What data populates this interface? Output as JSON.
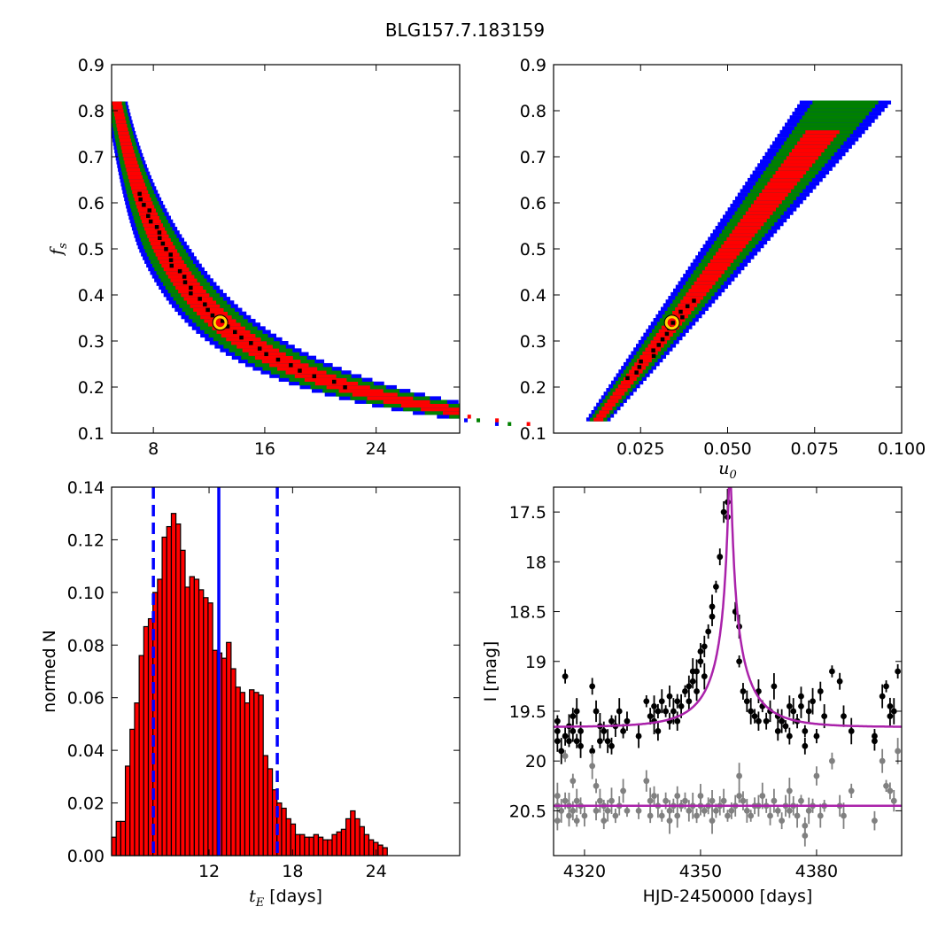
{
  "figure": {
    "title": "BLG157.7.183159"
  },
  "chart_data": [
    {
      "id": "fs-vs-tE",
      "type": "heatmap",
      "xlabel": "",
      "ylabel": "f_s",
      "xlim": [
        5,
        30
      ],
      "ylim": [
        0.1,
        0.9
      ],
      "xticks": [
        8,
        16,
        24
      ],
      "yticks": [
        0.1,
        0.2,
        0.3,
        0.4,
        0.5,
        0.6,
        0.7,
        0.8,
        0.9
      ],
      "region_colors": {
        "3sigma": "#0000ff",
        "2sigma": "#008000",
        "1sigma": "#ff0000",
        "best_samples": "#000000"
      },
      "curve_relation": "f_s ≈ 4.4 / t_E (degeneracy track)",
      "best_fit": {
        "x": 12.8,
        "y": 0.34,
        "marker": "yellow-ring"
      }
    },
    {
      "id": "fs-vs-u0",
      "type": "heatmap",
      "xlabel": "u_0",
      "ylabel": "",
      "xlim": [
        0.0,
        0.1
      ],
      "ylim": [
        0.1,
        0.9
      ],
      "xticks": [
        0.025,
        0.05,
        0.075,
        0.1
      ],
      "xtick_labels": [
        "0.025",
        "0.050",
        "0.075",
        "0.100"
      ],
      "yticks": [
        0.1,
        0.2,
        0.3,
        0.4,
        0.5,
        0.6,
        0.7,
        0.8,
        0.9
      ],
      "region_colors": {
        "3sigma": "#0000ff",
        "2sigma": "#008000",
        "1sigma": "#ff0000",
        "best_samples": "#000000"
      },
      "curve_relation": "f_s ≈ 10 · u_0 (linear)",
      "best_fit": {
        "x": 0.034,
        "y": 0.34,
        "marker": "yellow-ring"
      }
    },
    {
      "id": "tE-histogram",
      "type": "bar",
      "xlabel": "t_E  [days]",
      "ylabel": "normed N",
      "xlim": [
        5,
        30
      ],
      "ylim": [
        0,
        0.14
      ],
      "xticks": [
        12,
        18,
        24
      ],
      "yticks": [
        0.0,
        0.02,
        0.04,
        0.06,
        0.08,
        0.1,
        0.12,
        0.14
      ],
      "ytick_labels": [
        "0.00",
        "0.02",
        "0.04",
        "0.06",
        "0.08",
        "0.10",
        "0.12",
        "0.14"
      ],
      "bin_start": 5.0,
      "bin_width": 0.33,
      "values": [
        0.007,
        0.013,
        0.013,
        0.034,
        0.048,
        0.058,
        0.076,
        0.087,
        0.09,
        0.1,
        0.105,
        0.121,
        0.125,
        0.13,
        0.126,
        0.116,
        0.102,
        0.106,
        0.105,
        0.101,
        0.098,
        0.096,
        0.078,
        0.077,
        0.075,
        0.081,
        0.071,
        0.064,
        0.062,
        0.058,
        0.063,
        0.062,
        0.061,
        0.038,
        0.033,
        0.025,
        0.02,
        0.018,
        0.014,
        0.012,
        0.008,
        0.008,
        0.007,
        0.007,
        0.008,
        0.007,
        0.006,
        0.006,
        0.008,
        0.009,
        0.01,
        0.014,
        0.017,
        0.014,
        0.011,
        0.008,
        0.006,
        0.005,
        0.004,
        0.003
      ],
      "bar_color": "#ff0000",
      "vlines": [
        {
          "x": 8.0,
          "style": "dashed",
          "color": "#0000ff"
        },
        {
          "x": 12.7,
          "style": "solid",
          "color": "#0000ff"
        },
        {
          "x": 16.9,
          "style": "dashed",
          "color": "#0000ff"
        }
      ]
    },
    {
      "id": "light-curve",
      "type": "scatter",
      "xlabel": "HJD-2450000 [days]",
      "ylabel": "I [mag]",
      "xlim": [
        4312,
        4402
      ],
      "ylim": [
        20.95,
        17.25
      ],
      "xticks": [
        4320,
        4350,
        4380
      ],
      "yticks": [
        17.5,
        18.0,
        18.5,
        19.0,
        19.5,
        20.0,
        20.5
      ],
      "series": [
        {
          "color": "#000000",
          "points": [
            [
              4313,
              19.6
            ],
            [
              4313,
              19.7
            ],
            [
              4313,
              19.8
            ],
            [
              4314,
              19.9
            ],
            [
              4315,
              19.15
            ],
            [
              4315,
              19.75
            ],
            [
              4316,
              19.65
            ],
            [
              4316,
              19.8
            ],
            [
              4317,
              19.55
            ],
            [
              4317,
              19.7
            ],
            [
              4318,
              19.5
            ],
            [
              4318,
              19.8
            ],
            [
              4319,
              19.7
            ],
            [
              4319,
              19.85
            ],
            [
              4322,
              19.9
            ],
            [
              4322,
              19.25
            ],
            [
              4323,
              19.5
            ],
            [
              4324,
              19.65
            ],
            [
              4324,
              19.8
            ],
            [
              4325,
              19.7
            ],
            [
              4326,
              19.8
            ],
            [
              4327,
              19.6
            ],
            [
              4327,
              19.85
            ],
            [
              4328,
              19.65
            ],
            [
              4329,
              19.5
            ],
            [
              4330,
              19.7
            ],
            [
              4331,
              19.6
            ],
            [
              4334,
              19.75
            ],
            [
              4336,
              19.4
            ],
            [
              4337,
              19.55
            ],
            [
              4338,
              19.45
            ],
            [
              4338,
              19.6
            ],
            [
              4339,
              19.5
            ],
            [
              4339,
              19.7
            ],
            [
              4340,
              19.4
            ],
            [
              4341,
              19.5
            ],
            [
              4342,
              19.6
            ],
            [
              4342,
              19.35
            ],
            [
              4343,
              19.5
            ],
            [
              4344,
              19.4
            ],
            [
              4344,
              19.6
            ],
            [
              4345,
              19.45
            ],
            [
              4346,
              19.3
            ],
            [
              4347,
              19.4
            ],
            [
              4347,
              19.25
            ],
            [
              4348,
              19.1
            ],
            [
              4348,
              19.2
            ],
            [
              4349,
              19.3
            ],
            [
              4349,
              19.1
            ],
            [
              4350,
              19.0
            ],
            [
              4350,
              18.9
            ],
            [
              4351,
              18.85
            ],
            [
              4351,
              19.15
            ],
            [
              4352,
              18.7
            ],
            [
              4353,
              18.55
            ],
            [
              4353,
              18.45
            ],
            [
              4354,
              18.25
            ],
            [
              4355,
              17.95
            ],
            [
              4356,
              17.5
            ],
            [
              4357,
              17.4
            ],
            [
              4357,
              17.55
            ],
            [
              4359,
              18.5
            ],
            [
              4360,
              18.65
            ],
            [
              4360,
              19.0
            ],
            [
              4361,
              19.3
            ],
            [
              4362,
              19.4
            ],
            [
              4363,
              19.5
            ],
            [
              4364,
              19.55
            ],
            [
              4365,
              19.6
            ],
            [
              4365,
              19.3
            ],
            [
              4366,
              19.45
            ],
            [
              4367,
              19.6
            ],
            [
              4368,
              19.5
            ],
            [
              4369,
              19.25
            ],
            [
              4370,
              19.55
            ],
            [
              4370,
              19.7
            ],
            [
              4371,
              19.6
            ],
            [
              4372,
              19.65
            ],
            [
              4373,
              19.75
            ],
            [
              4373,
              19.45
            ],
            [
              4374,
              19.5
            ],
            [
              4375,
              19.6
            ],
            [
              4376,
              19.35
            ],
            [
              4376,
              19.45
            ],
            [
              4377,
              19.7
            ],
            [
              4377,
              19.85
            ],
            [
              4378,
              19.5
            ],
            [
              4379,
              19.4
            ],
            [
              4380,
              19.75
            ],
            [
              4381,
              19.3
            ],
            [
              4382,
              19.55
            ],
            [
              4384,
              19.1
            ],
            [
              4386,
              19.2
            ],
            [
              4387,
              19.55
            ],
            [
              4389,
              19.7
            ],
            [
              4395,
              19.75
            ],
            [
              4395,
              19.8
            ],
            [
              4397,
              19.35
            ],
            [
              4398,
              19.25
            ],
            [
              4399,
              19.45
            ],
            [
              4399,
              19.55
            ],
            [
              4400,
              19.5
            ],
            [
              4401,
              19.1
            ]
          ]
        },
        {
          "color": "#808080",
          "points": [
            [
              4313,
              20.35
            ],
            [
              4313,
              20.45
            ],
            [
              4313,
              20.6
            ],
            [
              4314,
              20.5
            ],
            [
              4315,
              19.95
            ],
            [
              4315,
              20.4
            ],
            [
              4316,
              20.55
            ],
            [
              4316,
              20.45
            ],
            [
              4317,
              20.2
            ],
            [
              4317,
              20.5
            ],
            [
              4318,
              20.4
            ],
            [
              4318,
              20.6
            ],
            [
              4319,
              20.45
            ],
            [
              4320,
              20.55
            ],
            [
              4322,
              20.05
            ],
            [
              4323,
              20.25
            ],
            [
              4323,
              20.5
            ],
            [
              4324,
              20.4
            ],
            [
              4325,
              20.45
            ],
            [
              4325,
              20.6
            ],
            [
              4326,
              20.5
            ],
            [
              4327,
              20.4
            ],
            [
              4328,
              20.55
            ],
            [
              4329,
              20.45
            ],
            [
              4330,
              20.3
            ],
            [
              4331,
              20.5
            ],
            [
              4334,
              20.5
            ],
            [
              4336,
              20.2
            ],
            [
              4337,
              20.4
            ],
            [
              4337,
              20.55
            ],
            [
              4338,
              20.35
            ],
            [
              4339,
              20.45
            ],
            [
              4340,
              20.55
            ],
            [
              4341,
              20.4
            ],
            [
              4342,
              20.5
            ],
            [
              4342,
              20.6
            ],
            [
              4343,
              20.45
            ],
            [
              4344,
              20.35
            ],
            [
              4344,
              20.55
            ],
            [
              4345,
              20.45
            ],
            [
              4346,
              20.4
            ],
            [
              4347,
              20.5
            ],
            [
              4348,
              20.45
            ],
            [
              4349,
              20.55
            ],
            [
              4350,
              20.45
            ],
            [
              4350,
              20.35
            ],
            [
              4351,
              20.5
            ],
            [
              4352,
              20.45
            ],
            [
              4353,
              20.4
            ],
            [
              4353,
              20.6
            ],
            [
              4354,
              20.5
            ],
            [
              4355,
              20.45
            ],
            [
              4356,
              20.4
            ],
            [
              4357,
              20.55
            ],
            [
              4358,
              20.5
            ],
            [
              4359,
              20.45
            ],
            [
              4360,
              20.15
            ],
            [
              4360,
              20.35
            ],
            [
              4361,
              20.4
            ],
            [
              4362,
              20.5
            ],
            [
              4363,
              20.55
            ],
            [
              4364,
              20.45
            ],
            [
              4365,
              20.45
            ],
            [
              4366,
              20.35
            ],
            [
              4367,
              20.45
            ],
            [
              4368,
              20.55
            ],
            [
              4369,
              20.4
            ],
            [
              4370,
              20.5
            ],
            [
              4371,
              20.6
            ],
            [
              4372,
              20.45
            ],
            [
              4373,
              20.3
            ],
            [
              4373,
              20.5
            ],
            [
              4374,
              20.45
            ],
            [
              4375,
              20.55
            ],
            [
              4376,
              20.4
            ],
            [
              4377,
              20.65
            ],
            [
              4377,
              20.75
            ],
            [
              4378,
              20.5
            ],
            [
              4379,
              20.45
            ],
            [
              4380,
              20.15
            ],
            [
              4381,
              20.55
            ],
            [
              4382,
              20.45
            ],
            [
              4384,
              20.0
            ],
            [
              4386,
              20.45
            ],
            [
              4387,
              20.55
            ],
            [
              4389,
              20.3
            ],
            [
              4395,
              20.6
            ],
            [
              4397,
              20.0
            ],
            [
              4398,
              20.25
            ],
            [
              4399,
              20.3
            ],
            [
              4400,
              20.4
            ],
            [
              4401,
              19.9
            ]
          ]
        }
      ],
      "model_curves": [
        {
          "color": "#aa22aa",
          "type": "paczynski",
          "t0": 4357.6,
          "tE": 12.8,
          "u0": 0.034,
          "fs": 0.34,
          "baseline_mag": 19.66
        },
        {
          "color": "#aa22aa",
          "type": "flat",
          "mag": 20.45
        }
      ]
    }
  ]
}
